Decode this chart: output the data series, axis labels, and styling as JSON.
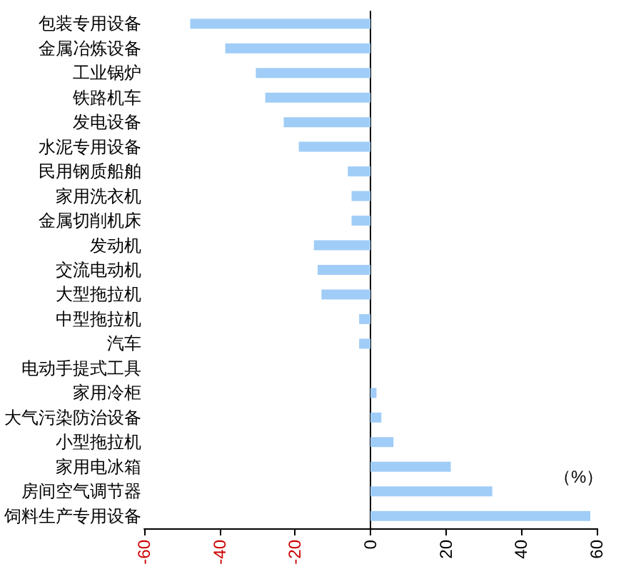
{
  "chart_data": {
    "type": "bar",
    "orientation": "horizontal",
    "xlabel": "（%）",
    "categories": [
      "包装专用设备",
      "金属冶炼设备",
      "工业锅炉",
      "铁路机车",
      "发电设备",
      "水泥专用设备",
      "民用钢质船舶",
      "家用洗衣机",
      "金属切削机床",
      "发动机",
      "交流电动机",
      "大型拖拉机",
      "中型拖拉机",
      "汽车",
      "电动手提式工具",
      "家用冷柜",
      "大气污染防治设备",
      "小型拖拉机",
      "家用电冰箱",
      "房间空气调节器",
      "饲料生产专用设备"
    ],
    "values": [
      -47.8,
      -38.5,
      -30.4,
      -27.9,
      -23,
      -19,
      -6,
      -5,
      -5,
      -15,
      -14,
      -13,
      -3,
      -3,
      0,
      1.6,
      2.9,
      6.1,
      21.3,
      32.3,
      58.3
    ],
    "color": "#a0cdf7",
    "xlim": [
      -60,
      60
    ],
    "xticks": [
      -60,
      -40,
      -20,
      0,
      20,
      40,
      60
    ]
  }
}
